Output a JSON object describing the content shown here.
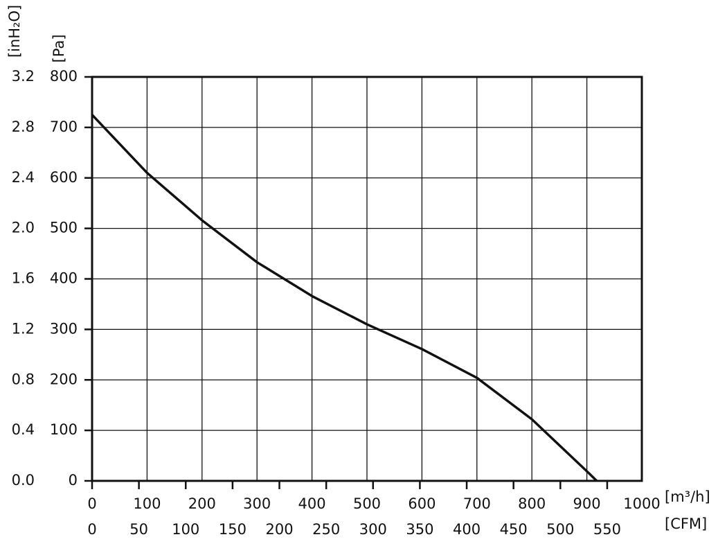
{
  "chart_data": {
    "type": "line",
    "x_label": "[m³/h]",
    "x2_label": "[CFM]",
    "y_label": "[Pa]",
    "y2_label": "[inH₂O]",
    "series": [
      {
        "color": "#111111",
        "x": [
          0,
          100,
          200,
          300,
          400,
          500,
          600,
          700,
          800,
          900,
          918
        ],
        "values": [
          725,
          610,
          516,
          433,
          366,
          310,
          261,
          204,
          122,
          19,
          0
        ]
      }
    ],
    "xlim": [
      0,
      1000
    ],
    "xticks": [
      0,
      100,
      200,
      300,
      400,
      500,
      600,
      700,
      800,
      900,
      1000
    ],
    "x2lim": [
      0,
      587
    ],
    "x2ticks": [
      0,
      50,
      100,
      150,
      200,
      250,
      300,
      350,
      400,
      450,
      500,
      550
    ],
    "ylim": [
      0,
      800
    ],
    "yticks": [
      0,
      100,
      200,
      300,
      400,
      500,
      600,
      700,
      800
    ],
    "y2lim": [
      0,
      3.2
    ],
    "y2ticks": [
      {
        "value": 0,
        "label": "0.0"
      },
      0.4,
      0.8,
      1.2,
      1.6,
      {
        "value": 2,
        "label": "2.0"
      },
      2.4,
      2.8,
      3.2
    ],
    "grid": true
  }
}
